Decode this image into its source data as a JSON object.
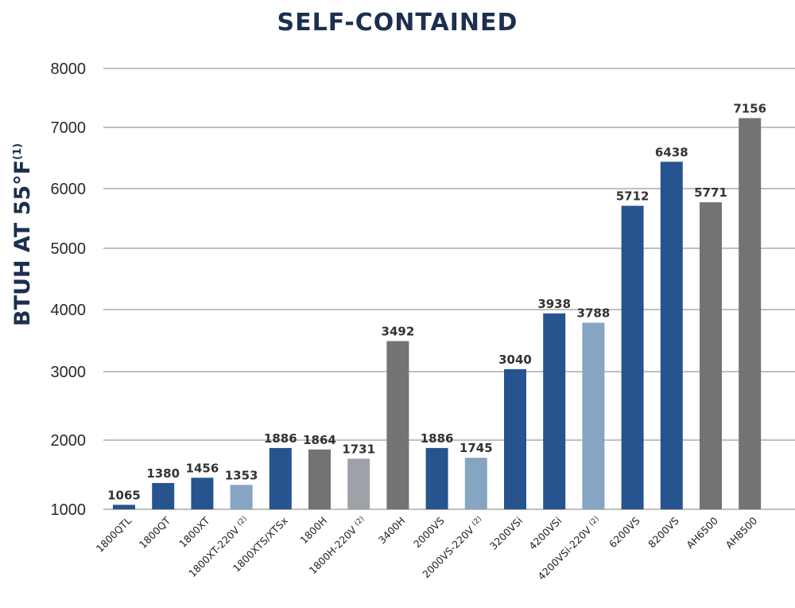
{
  "chart_data": {
    "type": "bar",
    "title": "SELF-CONTAINED",
    "xlabel": "",
    "ylabel": "BTUH AT 55°F",
    "ylabel_note": "(1)",
    "ylim": [
      1000,
      8000
    ],
    "yticks": [
      1000,
      2000,
      3000,
      4000,
      5000,
      6000,
      7000,
      8000
    ],
    "grid": true,
    "colors": {
      "navy": "#26548f",
      "light_blue": "#86a5c3",
      "dark_gray": "#737373",
      "light_gray": "#9ea2a8"
    },
    "categories": [
      {
        "label": "1800QTL",
        "note": "",
        "value": 1065,
        "color": "navy"
      },
      {
        "label": "1800QT",
        "note": "",
        "value": 1380,
        "color": "navy"
      },
      {
        "label": "1800XT",
        "note": "",
        "value": 1456,
        "color": "navy"
      },
      {
        "label": "1800XT-220V",
        "note": "(2)",
        "value": 1353,
        "color": "light_blue"
      },
      {
        "label": "1800XTS/XTSx",
        "note": "",
        "value": 1886,
        "color": "navy"
      },
      {
        "label": "1800H",
        "note": "",
        "value": 1864,
        "color": "dark_gray"
      },
      {
        "label": "1800H-220V",
        "note": "(2)",
        "value": 1731,
        "color": "light_gray"
      },
      {
        "label": "3400H",
        "note": "",
        "value": 3492,
        "color": "dark_gray"
      },
      {
        "label": "2000VS",
        "note": "",
        "value": 1886,
        "color": "navy"
      },
      {
        "label": "2000VS-220V",
        "note": "(2)",
        "value": 1745,
        "color": "light_blue"
      },
      {
        "label": "3200VSi",
        "note": "",
        "value": 3040,
        "color": "navy"
      },
      {
        "label": "4200VSi",
        "note": "",
        "value": 3938,
        "color": "navy"
      },
      {
        "label": "4200VSi-220V",
        "note": "(2)",
        "value": 3788,
        "color": "light_blue"
      },
      {
        "label": "6200VS",
        "note": "",
        "value": 5712,
        "color": "navy"
      },
      {
        "label": "8200VS",
        "note": "",
        "value": 6438,
        "color": "navy"
      },
      {
        "label": "AH6500",
        "note": "",
        "value": 5771,
        "color": "dark_gray"
      },
      {
        "label": "AH8500",
        "note": "",
        "value": 7156,
        "color": "dark_gray"
      }
    ]
  }
}
